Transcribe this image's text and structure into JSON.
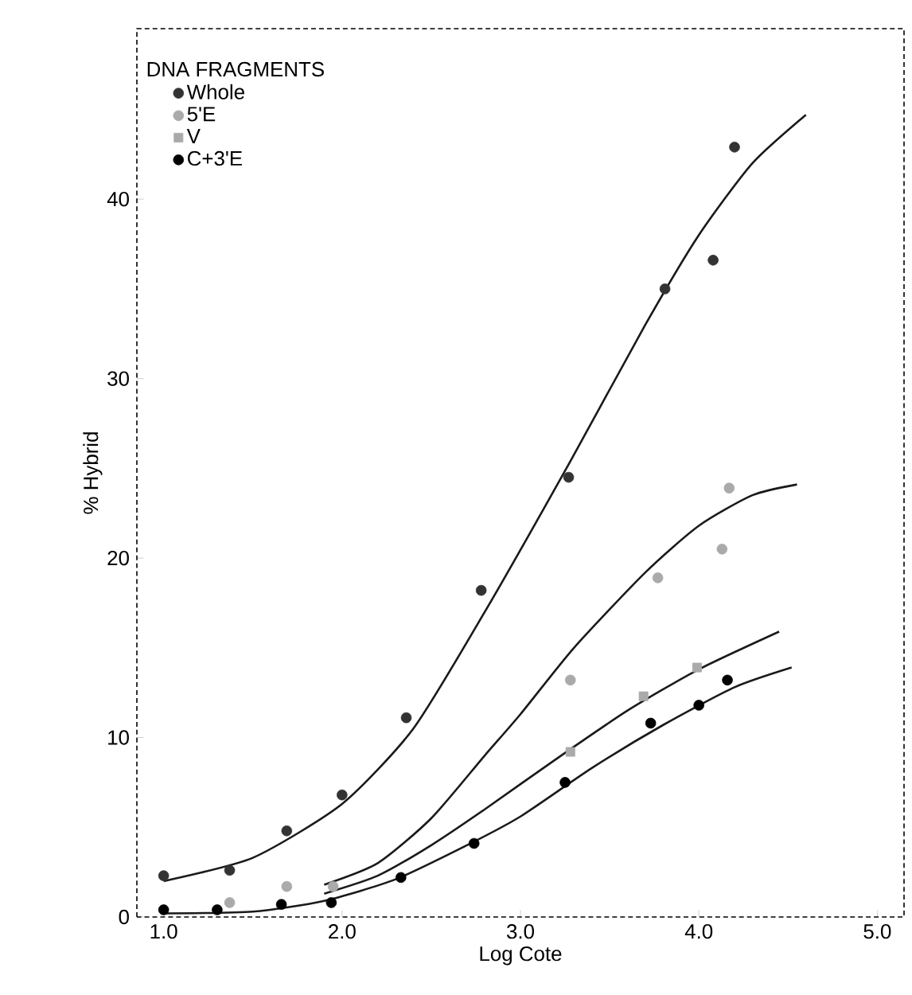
{
  "chart_data": {
    "type": "scatter",
    "legend_title": "DNA FRAGMENTS",
    "xlabel": "Log Cote",
    "ylabel": "% Hybrid",
    "xlim": [
      0.85,
      5.15
    ],
    "ylim": [
      0,
      49.5
    ],
    "xticks": [
      {
        "value": 1,
        "label": "1.0"
      },
      {
        "value": 2,
        "label": "2.0"
      },
      {
        "value": 3,
        "label": "3.0"
      },
      {
        "value": 4,
        "label": "4.0"
      },
      {
        "value": 5,
        "label": "5.0"
      }
    ],
    "yticks": [
      0,
      10,
      20,
      30,
      40
    ],
    "grid": false,
    "legend": "top left",
    "series": [
      {
        "name": "Whole",
        "marker": "circle",
        "color": "#333333",
        "x": [
          1.0,
          1.37,
          1.69,
          2.0,
          2.36,
          2.78,
          3.27,
          3.81,
          4.08,
          4.2
        ],
        "values": [
          2.3,
          2.6,
          4.8,
          6.8,
          11.1,
          18.2,
          24.5,
          35.0,
          36.6,
          42.9
        ]
      },
      {
        "name": "5'E",
        "marker": "circle",
        "color": "#aaaaaa",
        "x": [
          1.37,
          1.69,
          1.95,
          3.28,
          3.77,
          4.13,
          4.17
        ],
        "values": [
          0.8,
          1.7,
          1.7,
          13.2,
          18.9,
          20.5,
          23.9
        ]
      },
      {
        "name": "V",
        "marker": "square",
        "color": "#aaaaaa",
        "x": [
          3.28,
          3.69,
          3.99
        ],
        "values": [
          9.2,
          12.3,
          13.9
        ]
      },
      {
        "name": "C+3'E",
        "marker": "circle",
        "color": "#000000",
        "x": [
          1.0,
          1.3,
          1.66,
          1.94,
          2.33,
          2.74,
          3.25,
          3.73,
          4.0,
          4.16
        ],
        "values": [
          0.4,
          0.4,
          0.7,
          0.8,
          2.2,
          4.1,
          7.5,
          10.8,
          11.8,
          13.2
        ]
      },
      {
        "type": "line",
        "marker": "none",
        "color": "#1a1a1a",
        "x": [
          1.0,
          1.5,
          2.0,
          2.4,
          2.8,
          3.28,
          3.7,
          4.0,
          4.3,
          4.6
        ],
        "values": [
          2.0,
          3.3,
          6.3,
          10.5,
          17,
          25.4,
          33,
          38,
          42,
          44.7
        ]
      },
      {
        "type": "line",
        "marker": "none",
        "color": "#1a1a1a",
        "x": [
          1.9,
          2.2,
          2.5,
          2.8,
          3.0,
          3.3,
          3.7,
          4.0,
          4.3,
          4.55
        ],
        "values": [
          1.8,
          3.0,
          5.5,
          9.0,
          11.3,
          15,
          19.2,
          21.8,
          23.5,
          24.1
        ]
      },
      {
        "type": "line",
        "marker": "none",
        "color": "#1a1a1a",
        "x": [
          1.9,
          2.2,
          2.5,
          2.8,
          3.2,
          3.6,
          4.0,
          4.45
        ],
        "values": [
          1.3,
          2.3,
          4.0,
          6.0,
          8.8,
          11.5,
          13.8,
          15.9
        ]
      },
      {
        "type": "line",
        "marker": "none",
        "color": "#1a1a1a",
        "x": [
          1.0,
          1.5,
          1.9,
          2.3,
          2.7,
          3.0,
          3.4,
          3.8,
          4.2,
          4.52
        ],
        "values": [
          0.2,
          0.3,
          0.9,
          2.1,
          4.0,
          5.6,
          8.3,
          10.7,
          12.8,
          13.9
        ]
      }
    ]
  }
}
